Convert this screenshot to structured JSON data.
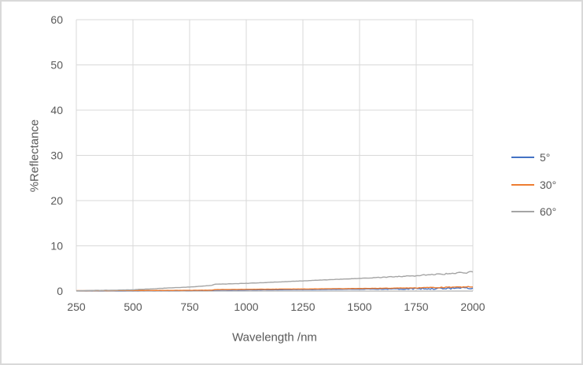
{
  "chart_data": {
    "type": "line",
    "title": "",
    "xlabel": "Wavelength /nm",
    "ylabel": "%Reflectance",
    "xlim": [
      250,
      2000
    ],
    "ylim": [
      0,
      60
    ],
    "xticks": [
      250,
      500,
      750,
      1000,
      1250,
      1500,
      1750,
      2000
    ],
    "yticks": [
      0,
      10,
      20,
      30,
      40,
      50,
      60
    ],
    "grid": true,
    "legend_position": "right",
    "colors": {
      "grid": "#D9D9D9",
      "axis": "#BFBFBF",
      "text": "#595959",
      "background": "#FFFFFF",
      "frame_border": "#D9D9D9"
    },
    "series": [
      {
        "name": "5°",
        "color": "#4472C4",
        "x": [
          250,
          500,
          750,
          850,
          860,
          1000,
          1250,
          1500,
          1750,
          2000
        ],
        "y": [
          0.05,
          0.08,
          0.12,
          0.15,
          0.2,
          0.25,
          0.33,
          0.42,
          0.52,
          0.65
        ],
        "noise_base": 0.02,
        "noise_end": 0.25
      },
      {
        "name": "30°",
        "color": "#ED7D31",
        "x": [
          250,
          500,
          750,
          850,
          860,
          1000,
          1250,
          1500,
          1750,
          2000
        ],
        "y": [
          0.08,
          0.12,
          0.16,
          0.2,
          0.32,
          0.38,
          0.46,
          0.56,
          0.7,
          0.95
        ],
        "noise_base": 0.02,
        "noise_end": 0.08
      },
      {
        "name": "60°",
        "color": "#A5A5A5",
        "x": [
          250,
          500,
          750,
          850,
          860,
          1000,
          1250,
          1500,
          1750,
          2000
        ],
        "y": [
          0.05,
          0.28,
          0.9,
          1.25,
          1.5,
          1.7,
          2.25,
          2.8,
          3.4,
          4.15
        ],
        "noise_base": 0.03,
        "noise_end": 0.18
      }
    ]
  }
}
